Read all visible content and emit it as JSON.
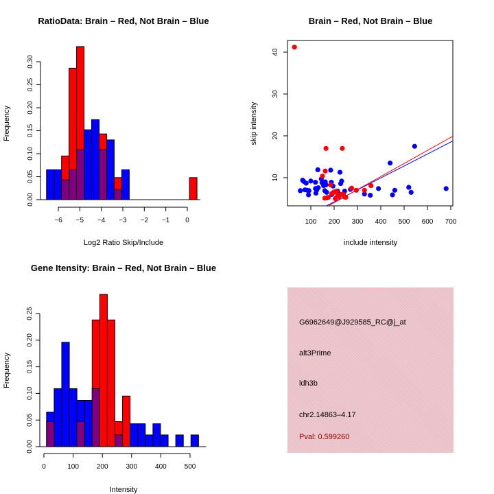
{
  "chart_data": [
    {
      "type": "bar",
      "subtype": "overlaid-histogram",
      "title": "RatioData: Brain – Red, Not Brain – Blue",
      "xlabel": "Log2 Ratio Skip/Include",
      "ylabel": "Frequency",
      "xlim": [
        -6.6,
        0.6
      ],
      "ylim": [
        0,
        0.33
      ],
      "xticks": [
        -6,
        -5,
        -4,
        -3,
        -2,
        -1,
        0
      ],
      "xtick_labels": [
        "−6",
        "−5",
        "−4",
        "−3",
        "−2",
        "−1",
        "0"
      ],
      "yticks": [
        0,
        0.05,
        0.1,
        0.15,
        0.2,
        0.25,
        0.3
      ],
      "ytick_labels": [
        "0.00",
        "0.05",
        "0.10",
        "0.15",
        "0.20",
        "0.25",
        "0.30"
      ],
      "bin_edges": [
        -6.55,
        -6.2,
        -5.85,
        -5.5,
        -5.15,
        -4.8,
        -4.45,
        -4.1,
        -3.75,
        -3.4,
        -3.05,
        -2.7,
        -2.35,
        -2.0,
        -1.65,
        -1.3,
        -0.95,
        -0.6,
        -0.25,
        0.1,
        0.45
      ],
      "series": [
        {
          "name": "Brain",
          "color": "#ff0000",
          "values": [
            0,
            0,
            0.095,
            0.286,
            0.333,
            0,
            0,
            0.143,
            0,
            0.048,
            0,
            0,
            0,
            0,
            0,
            0,
            0,
            0,
            0,
            0.048
          ]
        },
        {
          "name": "Not Brain",
          "color": "#0000ff",
          "values": [
            0.065,
            0.065,
            0.043,
            0.065,
            0.109,
            0.152,
            0.174,
            0.109,
            0.13,
            0.022,
            0.065,
            0,
            0,
            0,
            0,
            0,
            0,
            0,
            0,
            0
          ]
        }
      ],
      "overlap_color": "#800080"
    },
    {
      "type": "scatter",
      "title": "Brain – Red, Not Brain – Blue",
      "xlabel": "include intensity",
      "ylabel": "skip intensity",
      "xlim": [
        0,
        710
      ],
      "ylim": [
        3.5,
        43
      ],
      "xticks": [
        100,
        200,
        300,
        400,
        500,
        600,
        700
      ],
      "yticks": [
        10,
        20,
        30,
        40
      ],
      "series": [
        {
          "name": "Brain",
          "color": "#ff0000",
          "points": [
            [
              30,
              41.2
            ],
            [
              165,
              17
            ],
            [
              235,
              17
            ],
            [
              162,
              11.6
            ],
            [
              150,
              10.4
            ],
            [
              160,
              5.1
            ],
            [
              175,
              5.3
            ],
            [
              190,
              6.2
            ],
            [
              195,
              6.4
            ],
            [
              205,
              5.0
            ],
            [
              210,
              6.8
            ],
            [
              215,
              5.8
            ],
            [
              220,
              5.5
            ],
            [
              230,
              6.0
            ],
            [
              240,
              6.0
            ],
            [
              245,
              5.4
            ],
            [
              250,
              5.3
            ],
            [
              275,
              7.5
            ],
            [
              295,
              7.0
            ],
            [
              330,
              7.0
            ],
            [
              358,
              8.1
            ],
            [
              200,
              6.6
            ],
            [
              185,
              8.3
            ]
          ],
          "fit_line": {
            "intercept": -2.2,
            "slope": 0.0312
          }
        },
        {
          "name": "Not Brain",
          "color": "#0000ff",
          "points": [
            [
              55,
              6.9
            ],
            [
              65,
              9.4
            ],
            [
              70,
              9.1
            ],
            [
              75,
              7.1
            ],
            [
              80,
              8.7
            ],
            [
              85,
              7.0
            ],
            [
              90,
              5.9
            ],
            [
              92,
              6.9
            ],
            [
              100,
              9.2
            ],
            [
              120,
              8.9
            ],
            [
              120,
              7.4
            ],
            [
              122,
              6.3
            ],
            [
              125,
              7.0
            ],
            [
              130,
              11.9
            ],
            [
              132,
              7.6
            ],
            [
              145,
              9.7
            ],
            [
              148,
              8.8
            ],
            [
              155,
              8.1
            ],
            [
              158,
              8.7
            ],
            [
              160,
              6.9
            ],
            [
              162,
              9.0
            ],
            [
              165,
              8.3
            ],
            [
              168,
              6.5
            ],
            [
              170,
              5.2
            ],
            [
              185,
              11.8
            ],
            [
              188,
              8.9
            ],
            [
              190,
              6.0
            ],
            [
              195,
              8.0
            ],
            [
              215,
              6.8
            ],
            [
              225,
              11.3
            ],
            [
              228,
              8.6
            ],
            [
              232,
              9.2
            ],
            [
              245,
              6.8
            ],
            [
              270,
              7.2
            ],
            [
              330,
              6.1
            ],
            [
              355,
              5.8
            ],
            [
              390,
              7.4
            ],
            [
              440,
              13.5
            ],
            [
              450,
              5.9
            ],
            [
              460,
              7.0
            ],
            [
              520,
              7.7
            ],
            [
              530,
              6.5
            ],
            [
              545,
              17.5
            ],
            [
              680,
              7.4
            ]
          ],
          "fit_line": {
            "intercept": -1.5,
            "slope": 0.0286
          }
        }
      ]
    },
    {
      "type": "bar",
      "subtype": "overlaid-histogram",
      "title": "Gene Itensity: Brain – Red, Not Brain – Blue",
      "xlabel": "Intensity",
      "ylabel": "Frequency",
      "xlim": [
        0,
        555
      ],
      "ylim": [
        0,
        0.29
      ],
      "xticks": [
        0,
        100,
        200,
        300,
        400,
        500
      ],
      "yticks": [
        0,
        0.05,
        0.1,
        0.15,
        0.2,
        0.25
      ],
      "ytick_labels": [
        "0.00",
        "0.05",
        "0.10",
        "0.15",
        "0.20",
        "0.25"
      ],
      "bin_edges": [
        9,
        35,
        61,
        87,
        113,
        139,
        165,
        191,
        217,
        243,
        269,
        295,
        321,
        347,
        373,
        399,
        425,
        451,
        477,
        503,
        529
      ],
      "series": [
        {
          "name": "Brain",
          "color": "#ff0000",
          "values": [
            0.047,
            0,
            0,
            0,
            0.047,
            0,
            0.238,
            0.286,
            0.238,
            0.047,
            0.095,
            0,
            0,
            0,
            0,
            0,
            0,
            0,
            0,
            0
          ]
        },
        {
          "name": "Not Brain",
          "color": "#0000ff",
          "values": [
            0.065,
            0.109,
            0.196,
            0.109,
            0.087,
            0.087,
            0.109,
            0,
            0,
            0.022,
            0,
            0.043,
            0.043,
            0.022,
            0.043,
            0.022,
            0,
            0.022,
            0,
            0.022
          ]
        }
      ],
      "overlap_color": "#800080"
    }
  ],
  "info_panel": {
    "probe_id": "G6962649@J929585_RC@j_at",
    "event_type": "alt3Prime",
    "gene": "ldh3b",
    "location": "chr2.14863–4.17",
    "pval": "Pval: 0.599260"
  }
}
